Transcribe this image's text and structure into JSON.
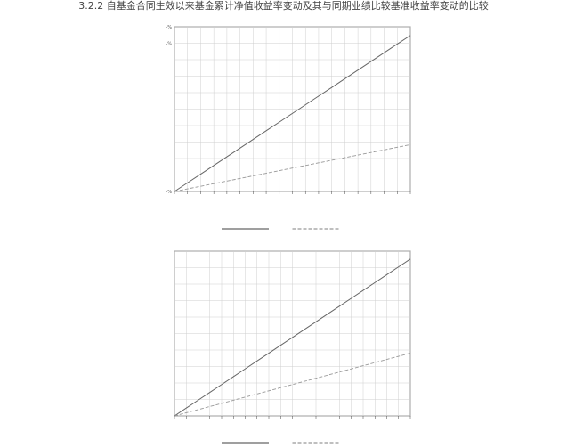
{
  "heading": "3.2.2 自基金合同生效以来基金累计净值收益率变动及其与同期业绩比较基准收益率变动的比较",
  "colors": {
    "fund_line": "#666666",
    "benchmark_line": "#999999",
    "grid": "#cfcfcf",
    "axis": "#444444"
  },
  "chart_data": [
    {
      "type": "line",
      "title": "",
      "y_ticks": [
        "-%",
        "",
        "",
        "",
        "",
        "",
        "",
        "",
        "",
        "-%",
        "-%"
      ],
      "ylim": [
        -10,
        180
      ],
      "x": [
        0,
        1,
        2,
        3,
        4,
        5,
        6,
        7,
        8,
        9,
        10,
        11,
        12,
        13,
        14,
        15,
        16,
        17,
        18
      ],
      "series": [
        {
          "values": [
            -10,
            0,
            10,
            20,
            30,
            40,
            50,
            60,
            70,
            80,
            90,
            100,
            110,
            120,
            130,
            140,
            150,
            160,
            170
          ]
        },
        {
          "values": [
            -10,
            -7,
            -4,
            -1,
            2,
            5,
            8,
            11,
            14,
            17,
            20,
            23,
            26,
            29,
            32,
            35,
            38,
            41,
            44
          ]
        }
      ],
      "grid": true,
      "legend": "bottom"
    },
    {
      "type": "line",
      "title": "",
      "y_ticks": [
        "",
        "",
        "",
        "",
        "",
        "",
        "",
        "",
        "",
        "",
        ""
      ],
      "ylim": [
        -10,
        200
      ],
      "x": [
        0,
        1,
        2,
        3,
        4,
        5,
        6,
        7,
        8,
        9,
        10,
        11,
        12,
        13,
        14,
        15,
        16,
        17,
        18,
        19,
        20
      ],
      "series": [
        {
          "values": [
            -10,
            0,
            10,
            20,
            30,
            40,
            50,
            60,
            70,
            80,
            90,
            100,
            110,
            120,
            130,
            140,
            150,
            160,
            170,
            180,
            190
          ]
        },
        {
          "values": [
            -10,
            -6,
            -2,
            2,
            6,
            10,
            14,
            18,
            22,
            26,
            30,
            34,
            38,
            42,
            46,
            50,
            54,
            58,
            62,
            66,
            70
          ]
        }
      ],
      "grid": true,
      "legend": "bottom"
    }
  ]
}
